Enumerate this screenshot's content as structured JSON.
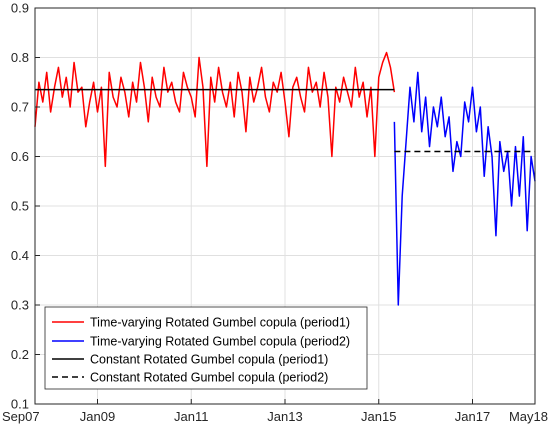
{
  "chart_data": {
    "type": "line",
    "title": "",
    "xlabel": "",
    "ylabel": "",
    "xlim": [
      "2007-09",
      "2018-05"
    ],
    "ylim": [
      0.1,
      0.9
    ],
    "x_ticks": [
      {
        "date": "2007-09",
        "label": "Sep07"
      },
      {
        "date": "2009-01",
        "label": "Jan09"
      },
      {
        "date": "2011-01",
        "label": "Jan11"
      },
      {
        "date": "2013-01",
        "label": "Jan13"
      },
      {
        "date": "2015-01",
        "label": "Jan15"
      },
      {
        "date": "2017-01",
        "label": "Jan17"
      },
      {
        "date": "2018-05",
        "label": "May18"
      }
    ],
    "y_ticks": [
      0.1,
      0.2,
      0.3,
      0.4,
      0.5,
      0.6,
      0.7,
      0.8,
      0.9
    ],
    "grid": true,
    "legend_placement": "bottom-left",
    "series": [
      {
        "name": "Time-varying Rotated Gumbel copula (period1)",
        "color": "#ff0000",
        "style": "solid",
        "x": [
          "2007-09",
          "2007-10",
          "2007-11",
          "2007-12",
          "2008-01",
          "2008-02",
          "2008-03",
          "2008-04",
          "2008-05",
          "2008-06",
          "2008-07",
          "2008-08",
          "2008-09",
          "2008-10",
          "2008-11",
          "2008-12",
          "2009-01",
          "2009-02",
          "2009-03",
          "2009-04",
          "2009-05",
          "2009-06",
          "2009-07",
          "2009-08",
          "2009-09",
          "2009-10",
          "2009-11",
          "2009-12",
          "2010-01",
          "2010-02",
          "2010-03",
          "2010-04",
          "2010-05",
          "2010-06",
          "2010-07",
          "2010-08",
          "2010-09",
          "2010-10",
          "2010-11",
          "2010-12",
          "2011-01",
          "2011-02",
          "2011-03",
          "2011-04",
          "2011-05",
          "2011-06",
          "2011-07",
          "2011-08",
          "2011-09",
          "2011-10",
          "2011-11",
          "2011-12",
          "2012-01",
          "2012-02",
          "2012-03",
          "2012-04",
          "2012-05",
          "2012-06",
          "2012-07",
          "2012-08",
          "2012-09",
          "2012-10",
          "2012-11",
          "2012-12",
          "2013-01",
          "2013-02",
          "2013-03",
          "2013-04",
          "2013-05",
          "2013-06",
          "2013-07",
          "2013-08",
          "2013-09",
          "2013-10",
          "2013-11",
          "2013-12",
          "2014-01",
          "2014-02",
          "2014-03",
          "2014-04",
          "2014-05",
          "2014-06",
          "2014-07",
          "2014-08",
          "2014-09",
          "2014-10",
          "2014-11",
          "2014-12",
          "2015-01",
          "2015-02",
          "2015-03",
          "2015-04",
          "2015-05"
        ],
        "values": [
          0.66,
          0.75,
          0.71,
          0.77,
          0.69,
          0.74,
          0.78,
          0.72,
          0.76,
          0.7,
          0.79,
          0.73,
          0.74,
          0.66,
          0.71,
          0.75,
          0.69,
          0.74,
          0.58,
          0.77,
          0.72,
          0.7,
          0.76,
          0.73,
          0.68,
          0.75,
          0.71,
          0.79,
          0.74,
          0.67,
          0.76,
          0.72,
          0.7,
          0.78,
          0.73,
          0.75,
          0.71,
          0.69,
          0.77,
          0.74,
          0.72,
          0.68,
          0.8,
          0.74,
          0.58,
          0.76,
          0.71,
          0.78,
          0.73,
          0.7,
          0.75,
          0.68,
          0.77,
          0.73,
          0.65,
          0.76,
          0.71,
          0.74,
          0.78,
          0.72,
          0.69,
          0.75,
          0.73,
          0.77,
          0.71,
          0.64,
          0.74,
          0.76,
          0.72,
          0.69,
          0.78,
          0.73,
          0.75,
          0.7,
          0.77,
          0.72,
          0.6,
          0.74,
          0.71,
          0.76,
          0.73,
          0.7,
          0.78,
          0.72,
          0.75,
          0.68,
          0.74,
          0.6,
          0.76,
          0.79,
          0.81,
          0.78,
          0.73
        ]
      },
      {
        "name": "Time-varying Rotated Gumbel copula (period2)",
        "color": "#0000ff",
        "style": "solid",
        "x": [
          "2015-05",
          "2015-06",
          "2015-07",
          "2015-08",
          "2015-09",
          "2015-10",
          "2015-11",
          "2015-12",
          "2016-01",
          "2016-02",
          "2016-03",
          "2016-04",
          "2016-05",
          "2016-06",
          "2016-07",
          "2016-08",
          "2016-09",
          "2016-10",
          "2016-11",
          "2016-12",
          "2017-01",
          "2017-02",
          "2017-03",
          "2017-04",
          "2017-05",
          "2017-06",
          "2017-07",
          "2017-08",
          "2017-09",
          "2017-10",
          "2017-11",
          "2017-12",
          "2018-01",
          "2018-02",
          "2018-03",
          "2018-04",
          "2018-05"
        ],
        "values": [
          0.67,
          0.3,
          0.52,
          0.63,
          0.74,
          0.67,
          0.77,
          0.65,
          0.72,
          0.62,
          0.7,
          0.66,
          0.72,
          0.64,
          0.68,
          0.57,
          0.63,
          0.6,
          0.71,
          0.67,
          0.74,
          0.65,
          0.7,
          0.56,
          0.66,
          0.6,
          0.44,
          0.63,
          0.57,
          0.61,
          0.5,
          0.62,
          0.52,
          0.64,
          0.45,
          0.6,
          0.55
        ]
      },
      {
        "name": "Constant Rotated Gumbel copula (period1)",
        "color": "#000000",
        "style": "solid",
        "x": [
          "2007-09",
          "2015-05"
        ],
        "values": [
          0.735,
          0.735
        ]
      },
      {
        "name": "Constant Rotated Gumbel copula (period2)",
        "color": "#000000",
        "style": "dashed",
        "x": [
          "2015-05",
          "2018-05"
        ],
        "values": [
          0.61,
          0.61
        ]
      }
    ]
  }
}
